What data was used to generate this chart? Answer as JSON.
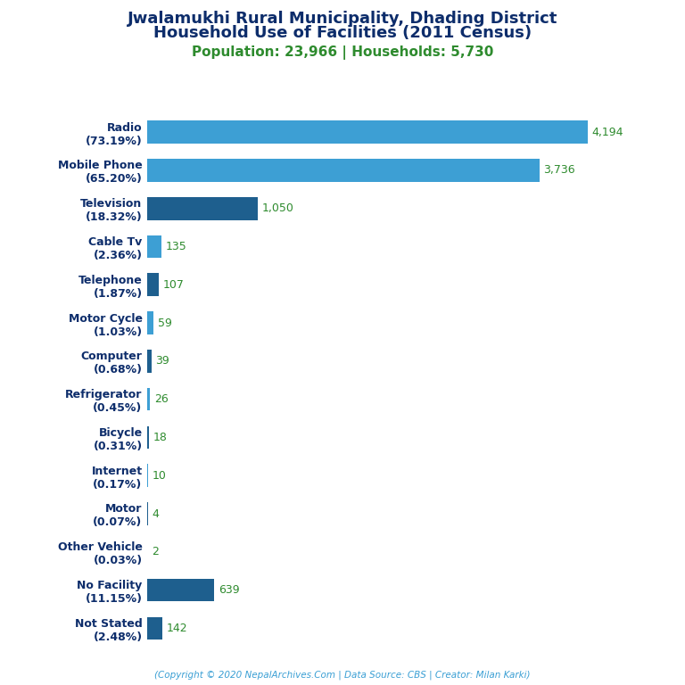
{
  "title_line1": "Jwalamukhi Rural Municipality, Dhading District",
  "title_line2": "Household Use of Facilities (2011 Census)",
  "subtitle": "Population: 23,966 | Households: 5,730",
  "footer": "(Copyright © 2020 NepalArchives.Com | Data Source: CBS | Creator: Milan Karki)",
  "categories": [
    "Radio\n(73.19%)",
    "Mobile Phone\n(65.20%)",
    "Television\n(18.32%)",
    "Cable Tv\n(2.36%)",
    "Telephone\n(1.87%)",
    "Motor Cycle\n(1.03%)",
    "Computer\n(0.68%)",
    "Refrigerator\n(0.45%)",
    "Bicycle\n(0.31%)",
    "Internet\n(0.17%)",
    "Motor\n(0.07%)",
    "Other Vehicle\n(0.03%)",
    "No Facility\n(11.15%)",
    "Not Stated\n(2.48%)"
  ],
  "values": [
    4194,
    3736,
    1050,
    135,
    107,
    59,
    39,
    26,
    18,
    10,
    4,
    2,
    639,
    142
  ],
  "value_labels": [
    "4,194",
    "3,736",
    "1,050",
    "135",
    "107",
    "59",
    "39",
    "26",
    "18",
    "10",
    "4",
    "2",
    "639",
    "142"
  ],
  "bar_colors": [
    "#3d9fd4",
    "#3d9fd4",
    "#1e5f8e",
    "#3d9fd4",
    "#1e5f8e",
    "#3d9fd4",
    "#1e5f8e",
    "#3d9fd4",
    "#1e5f8e",
    "#3d9fd4",
    "#1e5f8e",
    "#3d9fd4",
    "#1e5f8e",
    "#1e5f8e"
  ],
  "title_color": "#0d2d6b",
  "subtitle_color": "#2e8b2e",
  "label_color": "#0d2d6b",
  "value_color": "#2e8b2e",
  "footer_color": "#3a9fd4",
  "background_color": "#ffffff",
  "xlim": [
    0,
    4700
  ],
  "bar_height": 0.6,
  "title_fontsize": 13,
  "subtitle_fontsize": 11,
  "label_fontsize": 9,
  "value_fontsize": 9
}
